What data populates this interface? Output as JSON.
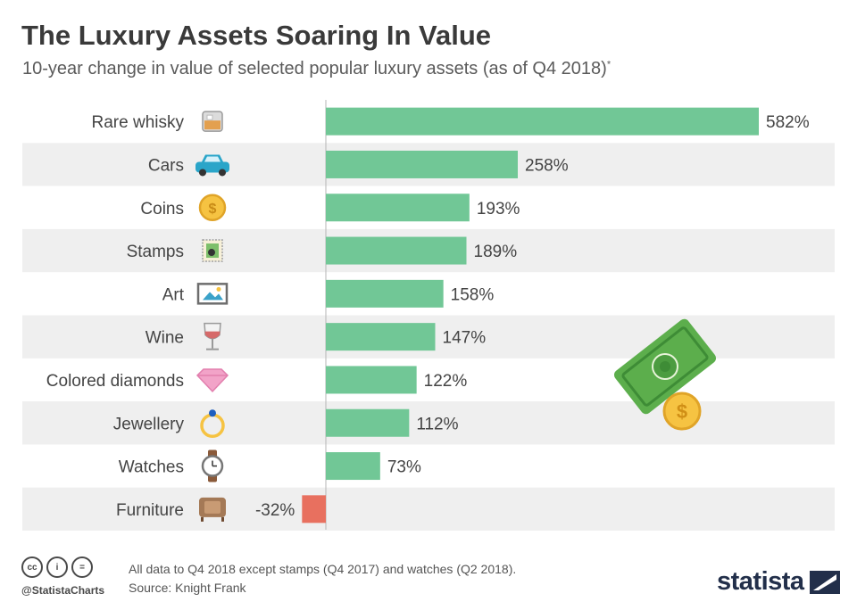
{
  "title": "The Luxury Assets Soaring In Value",
  "subtitle": "10-year change in value of selected popular luxury assets (as of Q4 2018)",
  "subtitle_mark": "*",
  "footer": {
    "handle": "@StatistaCharts",
    "note": "All data to Q4 2018 except stamps (Q4 2017) and watches (Q2 2018).",
    "source": "Source: Knight Frank",
    "brand": "statista",
    "license_icons": [
      "cc",
      "i",
      "="
    ]
  },
  "chart_data": {
    "type": "bar",
    "orientation": "horizontal",
    "categories": [
      "Rare whisky",
      "Cars",
      "Coins",
      "Stamps",
      "Art",
      "Wine",
      "Colored diamonds",
      "Jewellery",
      "Watches",
      "Furniture"
    ],
    "values": [
      582,
      258,
      193,
      189,
      158,
      147,
      122,
      112,
      73,
      -32
    ],
    "labels": [
      "582%",
      "258%",
      "193%",
      "189%",
      "158%",
      "147%",
      "122%",
      "112%",
      "73%",
      "-32%"
    ],
    "unit": "%",
    "icons": [
      "whisky-glass-icon",
      "car-icon",
      "coin-icon",
      "stamp-icon",
      "picture-frame-icon",
      "wine-glass-icon",
      "diamond-icon",
      "ring-icon",
      "watch-icon",
      "armchair-icon"
    ],
    "colors": {
      "positive": "#71c796",
      "negative": "#e8705f",
      "band": "#efefef"
    },
    "grid": false,
    "legend": "none"
  }
}
